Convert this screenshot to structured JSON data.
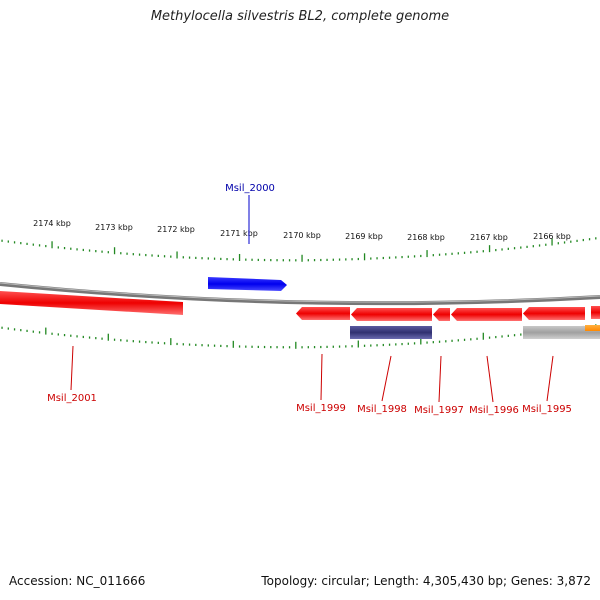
{
  "title": "Methylocella silvestris BL2, complete genome",
  "footer": {
    "accession": "Accession: NC_011666",
    "topology": "Topology: circular; Length: 4,305,430 bp; Genes: 3,872"
  },
  "colors": {
    "forward_gene": "#0000ee",
    "reverse_gene": "#ee0000",
    "rna_gene": "#404080",
    "pseudo_gene": "#b0b0b0",
    "other_feature": "#ff9900",
    "ticks": "#228822",
    "backbone": "#888888"
  },
  "ruler": {
    "unit": "kbp",
    "labels": [
      "2174 kbp",
      "2173 kbp",
      "2172 kbp",
      "2171 kbp",
      "2170 kbp",
      "2169 kbp",
      "2168 kbp",
      "2167 kbp",
      "2166 kbp"
    ]
  },
  "genes": [
    {
      "label": "Msil_2000",
      "strand": "forward"
    },
    {
      "label": "Msil_2001",
      "strand": "reverse"
    },
    {
      "label": "Msil_1999",
      "strand": "reverse"
    },
    {
      "label": "Msil_1998",
      "strand": "reverse"
    },
    {
      "label": "Msil_1997",
      "strand": "reverse"
    },
    {
      "label": "Msil_1996",
      "strand": "reverse"
    },
    {
      "label": "Msil_1995",
      "strand": "reverse"
    }
  ]
}
